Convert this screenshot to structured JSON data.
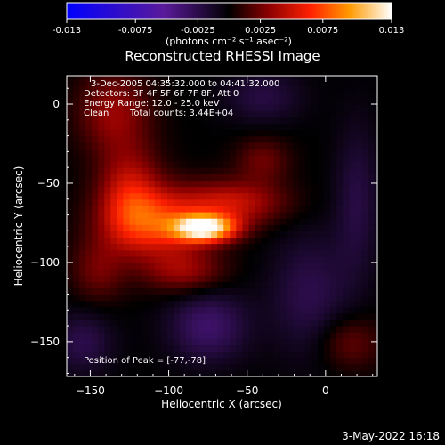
{
  "colorbar": {
    "ticks": [
      "-0.013",
      "-0.0075",
      "-0.0025",
      "0.0025",
      "0.0075",
      "0.013"
    ],
    "tick_values": [
      -0.013,
      -0.0075,
      -0.0025,
      0.0025,
      0.0075,
      0.013
    ],
    "range": [
      -0.013,
      0.013
    ],
    "unit_label": "(photons cm⁻² s⁻¹ asec⁻²)"
  },
  "chart_data": {
    "type": "heatmap",
    "title": "Reconstructed RHESSI Image",
    "xlabel": "Heliocentric X (arcsec)",
    "ylabel": "Heliocentric Y (arcsec)",
    "xlim": [
      -165,
      33
    ],
    "ylim": [
      -172,
      18
    ],
    "x_ticks": [
      -150,
      -100,
      -50,
      0
    ],
    "y_ticks": [
      0,
      -50,
      -100,
      -150
    ],
    "grid": false,
    "annotations": {
      "time_range": "3-Dec-2005 04:35:32.000 to 04:41:32.000",
      "detectors": "Detectors: 3F 4F 5F 6F 7F 8F, Att 0",
      "energy": "Energy Range: 12.0 - 25.0 keV",
      "clean_label": "Clean",
      "total_counts": "Total counts: 3.44E+04",
      "peak": "Position of Peak = [-77,-78]"
    },
    "peak": {
      "x": -77,
      "y": -78,
      "value": 0.013
    },
    "features": [
      {
        "x": -77,
        "y": -78,
        "sx": 14,
        "sy": 6,
        "value": 0.0125
      },
      {
        "x": -110,
        "y": -75,
        "sx": 22,
        "sy": 15,
        "value": 0.0062
      },
      {
        "x": -125,
        "y": -55,
        "sx": 14,
        "sy": 20,
        "value": 0.0045
      },
      {
        "x": -135,
        "y": -5,
        "sx": 16,
        "sy": 18,
        "value": 0.0035
      },
      {
        "x": -60,
        "y": -62,
        "sx": 24,
        "sy": 10,
        "value": 0.0048
      },
      {
        "x": -40,
        "y": -35,
        "sx": 12,
        "sy": 10,
        "value": 0.0025
      },
      {
        "x": -90,
        "y": -105,
        "sx": 18,
        "sy": 10,
        "value": 0.0035
      },
      {
        "x": -145,
        "y": -105,
        "sx": 12,
        "sy": 14,
        "value": 0.0025
      },
      {
        "x": 15,
        "y": -150,
        "sx": 14,
        "sy": 12,
        "value": 0.0025
      },
      {
        "x": -75,
        "y": -140,
        "sx": 18,
        "sy": 16,
        "value": -0.0035
      },
      {
        "x": -155,
        "y": -150,
        "sx": 14,
        "sy": 14,
        "value": -0.0025
      },
      {
        "x": -10,
        "y": -120,
        "sx": 18,
        "sy": 28,
        "value": -0.0025
      },
      {
        "x": -40,
        "y": 5,
        "sx": 18,
        "sy": 12,
        "value": -0.0022
      },
      {
        "x": 20,
        "y": -60,
        "sx": 10,
        "sy": 35,
        "value": -0.0022
      }
    ]
  },
  "footer": {
    "date": "3-May-2022 16:18"
  }
}
